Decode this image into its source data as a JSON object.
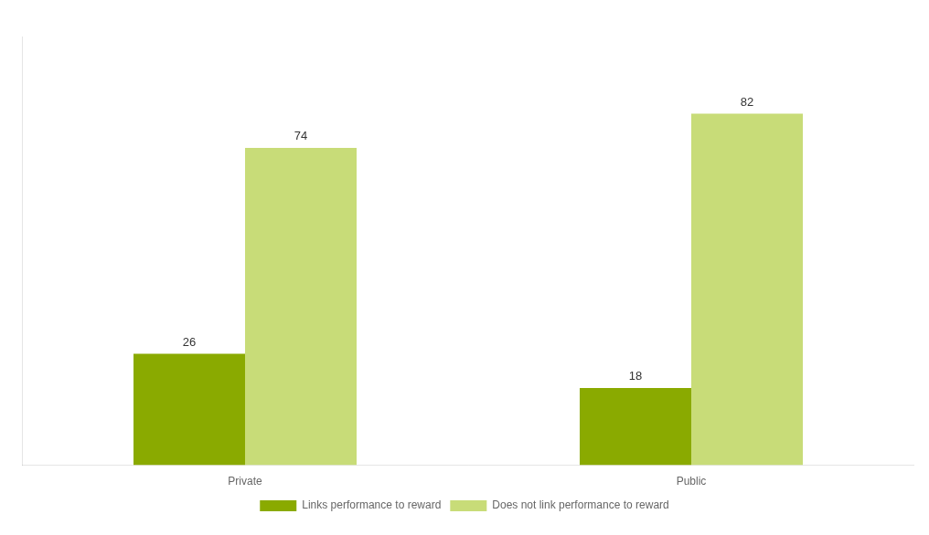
{
  "chart_data": {
    "type": "bar",
    "categories": [
      "Private",
      "Public"
    ],
    "series": [
      {
        "name": "Links performance to reward",
        "color": "#8aaa00",
        "values": [
          26,
          18
        ]
      },
      {
        "name": "Does not link performance to reward",
        "color": "#c8dc78",
        "values": [
          74,
          82
        ]
      }
    ],
    "ylim": [
      0,
      100
    ],
    "grid": false,
    "legend": "bottom",
    "data_labels": true,
    "tick_labels": "x"
  }
}
